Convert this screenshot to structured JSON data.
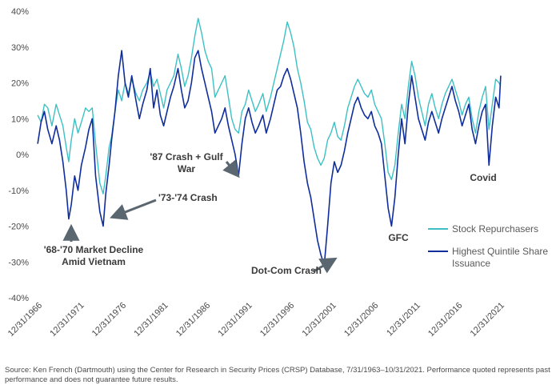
{
  "chart_data": {
    "type": "line",
    "y_ticks": [
      "40%",
      "30%",
      "20%",
      "10%",
      "0%",
      "-10%",
      "-20%",
      "-30%",
      "-40%"
    ],
    "y_values": [
      40,
      30,
      20,
      10,
      0,
      -10,
      -20,
      -30,
      -40
    ],
    "ylim": [
      -40,
      40
    ],
    "x_ticks": [
      "12/31/1966",
      "12/31/1971",
      "12/31/1976",
      "12/31/1981",
      "12/31/1986",
      "12/31/1991",
      "12/31/1996",
      "12/31/2001",
      "12/31/2006",
      "12/31/2011",
      "12/31/2016",
      "12/31/2021"
    ],
    "x_tick_years": [
      1966.99,
      1971.99,
      1976.99,
      1981.99,
      1986.99,
      1991.99,
      1996.99,
      2001.99,
      2006.99,
      2011.99,
      2016.99,
      2021.99
    ],
    "xlim": [
      1966.7,
      2022.0
    ],
    "grid": false,
    "legend_position": "right",
    "series": [
      {
        "name": "Stock Repurchasers",
        "color": "#3cc0c4",
        "points": [
          [
            1966.8,
            11
          ],
          [
            1967.2,
            9
          ],
          [
            1967.6,
            14
          ],
          [
            1968.0,
            13
          ],
          [
            1968.5,
            8
          ],
          [
            1969.0,
            14
          ],
          [
            1969.4,
            11
          ],
          [
            1969.8,
            8
          ],
          [
            1970.2,
            2
          ],
          [
            1970.5,
            -2
          ],
          [
            1970.8,
            4
          ],
          [
            1971.2,
            10
          ],
          [
            1971.6,
            6
          ],
          [
            1972.0,
            9
          ],
          [
            1972.5,
            13
          ],
          [
            1972.9,
            12
          ],
          [
            1973.3,
            13
          ],
          [
            1973.7,
            3
          ],
          [
            1974.2,
            -8
          ],
          [
            1974.6,
            -11
          ],
          [
            1974.9,
            -6
          ],
          [
            1975.3,
            2
          ],
          [
            1975.6,
            5
          ],
          [
            1976.0,
            12
          ],
          [
            1976.4,
            18
          ],
          [
            1976.8,
            15
          ],
          [
            1977.2,
            20
          ],
          [
            1977.6,
            17
          ],
          [
            1978.0,
            21
          ],
          [
            1978.5,
            17
          ],
          [
            1978.9,
            15
          ],
          [
            1979.3,
            18
          ],
          [
            1979.8,
            20
          ],
          [
            1980.2,
            23
          ],
          [
            1980.6,
            19
          ],
          [
            1981.0,
            21
          ],
          [
            1981.4,
            17
          ],
          [
            1981.8,
            13
          ],
          [
            1982.2,
            18
          ],
          [
            1982.6,
            20
          ],
          [
            1983.0,
            22
          ],
          [
            1983.5,
            28
          ],
          [
            1983.9,
            24
          ],
          [
            1984.3,
            19
          ],
          [
            1984.7,
            22
          ],
          [
            1985.1,
            27
          ],
          [
            1985.5,
            33
          ],
          [
            1985.9,
            38
          ],
          [
            1986.3,
            34
          ],
          [
            1986.7,
            29
          ],
          [
            1987.1,
            26
          ],
          [
            1987.5,
            24
          ],
          [
            1987.9,
            16
          ],
          [
            1988.3,
            18
          ],
          [
            1988.7,
            20
          ],
          [
            1989.1,
            22
          ],
          [
            1989.5,
            16
          ],
          [
            1989.9,
            10
          ],
          [
            1990.3,
            7
          ],
          [
            1990.7,
            6
          ],
          [
            1991.1,
            12
          ],
          [
            1991.5,
            14
          ],
          [
            1991.9,
            18
          ],
          [
            1992.3,
            15
          ],
          [
            1992.7,
            12
          ],
          [
            1993.1,
            14
          ],
          [
            1993.6,
            17
          ],
          [
            1994.0,
            12
          ],
          [
            1994.5,
            16
          ],
          [
            1994.9,
            20
          ],
          [
            1995.3,
            24
          ],
          [
            1995.7,
            28
          ],
          [
            1996.1,
            32
          ],
          [
            1996.5,
            37
          ],
          [
            1996.9,
            34
          ],
          [
            1997.3,
            30
          ],
          [
            1997.7,
            24
          ],
          [
            1998.1,
            20
          ],
          [
            1998.5,
            15
          ],
          [
            1998.9,
            9
          ],
          [
            1999.3,
            7
          ],
          [
            1999.7,
            2
          ],
          [
            2000.1,
            -1
          ],
          [
            2000.5,
            -3
          ],
          [
            2000.9,
            -1
          ],
          [
            2001.3,
            4
          ],
          [
            2001.7,
            6
          ],
          [
            2002.1,
            9
          ],
          [
            2002.5,
            5
          ],
          [
            2002.9,
            4
          ],
          [
            2003.3,
            8
          ],
          [
            2003.7,
            13
          ],
          [
            2004.1,
            16
          ],
          [
            2004.5,
            19
          ],
          [
            2004.9,
            21
          ],
          [
            2005.3,
            19
          ],
          [
            2005.7,
            17
          ],
          [
            2006.1,
            16
          ],
          [
            2006.5,
            18
          ],
          [
            2006.9,
            14
          ],
          [
            2007.3,
            12
          ],
          [
            2007.7,
            10
          ],
          [
            2008.1,
            3
          ],
          [
            2008.5,
            -5
          ],
          [
            2008.9,
            -7
          ],
          [
            2009.3,
            -3
          ],
          [
            2009.7,
            6
          ],
          [
            2010.1,
            14
          ],
          [
            2010.5,
            10
          ],
          [
            2010.9,
            19
          ],
          [
            2011.3,
            26
          ],
          [
            2011.7,
            22
          ],
          [
            2012.1,
            16
          ],
          [
            2012.5,
            12
          ],
          [
            2012.9,
            8
          ],
          [
            2013.3,
            14
          ],
          [
            2013.7,
            17
          ],
          [
            2014.1,
            13
          ],
          [
            2014.5,
            10
          ],
          [
            2014.9,
            14
          ],
          [
            2015.3,
            17
          ],
          [
            2015.7,
            19
          ],
          [
            2016.1,
            21
          ],
          [
            2016.5,
            18
          ],
          [
            2016.9,
            15
          ],
          [
            2017.3,
            11
          ],
          [
            2017.7,
            14
          ],
          [
            2018.1,
            16
          ],
          [
            2018.5,
            10
          ],
          [
            2018.9,
            6
          ],
          [
            2019.3,
            12
          ],
          [
            2019.7,
            16
          ],
          [
            2020.1,
            19
          ],
          [
            2020.5,
            7
          ],
          [
            2020.9,
            14
          ],
          [
            2021.3,
            21
          ],
          [
            2021.7,
            20
          ],
          [
            2021.9,
            19
          ]
        ]
      },
      {
        "name": "Highest Quintile Share Issuance",
        "color": "#0f2d9c",
        "points": [
          [
            1966.8,
            3
          ],
          [
            1967.2,
            9
          ],
          [
            1967.6,
            12
          ],
          [
            1968.0,
            7
          ],
          [
            1968.5,
            3
          ],
          [
            1969.0,
            8
          ],
          [
            1969.4,
            4
          ],
          [
            1969.8,
            -2
          ],
          [
            1970.2,
            -10
          ],
          [
            1970.5,
            -18
          ],
          [
            1970.8,
            -14
          ],
          [
            1971.2,
            -6
          ],
          [
            1971.6,
            -10
          ],
          [
            1972.0,
            -3
          ],
          [
            1972.5,
            2
          ],
          [
            1972.9,
            7
          ],
          [
            1973.3,
            10
          ],
          [
            1973.7,
            -6
          ],
          [
            1974.2,
            -16
          ],
          [
            1974.6,
            -20
          ],
          [
            1974.9,
            -11
          ],
          [
            1975.3,
            -3
          ],
          [
            1975.6,
            4
          ],
          [
            1976.0,
            12
          ],
          [
            1976.4,
            22
          ],
          [
            1976.8,
            29
          ],
          [
            1977.2,
            20
          ],
          [
            1977.6,
            16
          ],
          [
            1978.0,
            22
          ],
          [
            1978.5,
            15
          ],
          [
            1978.9,
            10
          ],
          [
            1979.3,
            14
          ],
          [
            1979.8,
            18
          ],
          [
            1980.2,
            24
          ],
          [
            1980.6,
            13
          ],
          [
            1981.0,
            18
          ],
          [
            1981.4,
            11
          ],
          [
            1981.8,
            8
          ],
          [
            1982.2,
            12
          ],
          [
            1982.6,
            16
          ],
          [
            1983.0,
            19
          ],
          [
            1983.5,
            24
          ],
          [
            1983.9,
            18
          ],
          [
            1984.3,
            13
          ],
          [
            1984.7,
            15
          ],
          [
            1985.1,
            20
          ],
          [
            1985.5,
            27
          ],
          [
            1985.9,
            29
          ],
          [
            1986.3,
            24
          ],
          [
            1986.7,
            20
          ],
          [
            1987.1,
            16
          ],
          [
            1987.5,
            12
          ],
          [
            1987.9,
            6
          ],
          [
            1988.3,
            8
          ],
          [
            1988.7,
            10
          ],
          [
            1989.1,
            13
          ],
          [
            1989.5,
            8
          ],
          [
            1989.9,
            4
          ],
          [
            1990.3,
            0
          ],
          [
            1990.7,
            -6
          ],
          [
            1991.1,
            3
          ],
          [
            1991.5,
            10
          ],
          [
            1991.9,
            13
          ],
          [
            1992.3,
            9
          ],
          [
            1992.7,
            6
          ],
          [
            1993.1,
            8
          ],
          [
            1993.6,
            11
          ],
          [
            1994.0,
            6
          ],
          [
            1994.5,
            10
          ],
          [
            1994.9,
            14
          ],
          [
            1995.3,
            18
          ],
          [
            1995.7,
            19
          ],
          [
            1996.1,
            22
          ],
          [
            1996.5,
            24
          ],
          [
            1996.9,
            21
          ],
          [
            1997.3,
            17
          ],
          [
            1997.7,
            13
          ],
          [
            1998.1,
            6
          ],
          [
            1998.5,
            -2
          ],
          [
            1998.9,
            -8
          ],
          [
            1999.3,
            -12
          ],
          [
            1999.7,
            -18
          ],
          [
            2000.1,
            -24
          ],
          [
            2000.5,
            -28
          ],
          [
            2000.9,
            -31
          ],
          [
            2001.3,
            -20
          ],
          [
            2001.7,
            -8
          ],
          [
            2002.1,
            -2
          ],
          [
            2002.5,
            -5
          ],
          [
            2002.9,
            -3
          ],
          [
            2003.3,
            1
          ],
          [
            2003.7,
            6
          ],
          [
            2004.1,
            10
          ],
          [
            2004.5,
            14
          ],
          [
            2004.9,
            16
          ],
          [
            2005.3,
            13
          ],
          [
            2005.7,
            11
          ],
          [
            2006.1,
            10
          ],
          [
            2006.5,
            12
          ],
          [
            2006.9,
            8
          ],
          [
            2007.3,
            6
          ],
          [
            2007.7,
            3
          ],
          [
            2008.1,
            -6
          ],
          [
            2008.5,
            -15
          ],
          [
            2008.9,
            -20
          ],
          [
            2009.3,
            -12
          ],
          [
            2009.7,
            0
          ],
          [
            2010.1,
            10
          ],
          [
            2010.5,
            3
          ],
          [
            2010.9,
            14
          ],
          [
            2011.3,
            22
          ],
          [
            2011.7,
            16
          ],
          [
            2012.1,
            10
          ],
          [
            2012.5,
            7
          ],
          [
            2012.9,
            4
          ],
          [
            2013.3,
            9
          ],
          [
            2013.7,
            12
          ],
          [
            2014.1,
            9
          ],
          [
            2014.5,
            6
          ],
          [
            2014.9,
            10
          ],
          [
            2015.3,
            13
          ],
          [
            2015.7,
            16
          ],
          [
            2016.1,
            19
          ],
          [
            2016.5,
            15
          ],
          [
            2016.9,
            12
          ],
          [
            2017.3,
            8
          ],
          [
            2017.7,
            11
          ],
          [
            2018.1,
            14
          ],
          [
            2018.5,
            7
          ],
          [
            2018.9,
            3
          ],
          [
            2019.3,
            8
          ],
          [
            2019.7,
            12
          ],
          [
            2020.1,
            14
          ],
          [
            2020.5,
            -3
          ],
          [
            2020.9,
            8
          ],
          [
            2021.3,
            16
          ],
          [
            2021.7,
            13
          ],
          [
            2021.9,
            22
          ]
        ]
      }
    ],
    "annotations": [
      {
        "id": "a1",
        "lines": [
          "'68-'70 Market Decline",
          "Amid Vietnam"
        ]
      },
      {
        "id": "a2",
        "lines": [
          "'73-'74 Crash"
        ]
      },
      {
        "id": "a3",
        "lines": [
          "'87 Crash + Gulf",
          "War"
        ]
      },
      {
        "id": "a4",
        "lines": [
          "Dot-Com Crash"
        ]
      },
      {
        "id": "a5",
        "lines": [
          "GFC"
        ]
      },
      {
        "id": "a6",
        "lines": [
          "Covid"
        ]
      }
    ]
  },
  "legend": {
    "items": [
      {
        "lines": [
          "Stock Repurchasers"
        ],
        "color": "#3cc0c4"
      },
      {
        "lines": [
          "Highest Quintile Share",
          "Issuance"
        ],
        "color": "#0f2d9c"
      }
    ]
  },
  "footnote": "Source: Ken French (Dartmouth) using the Center for Research in Security Prices (CRSP) Database, 7/31/1963–10/31/2021. Performance quoted represents past performance and does not guarantee future results."
}
